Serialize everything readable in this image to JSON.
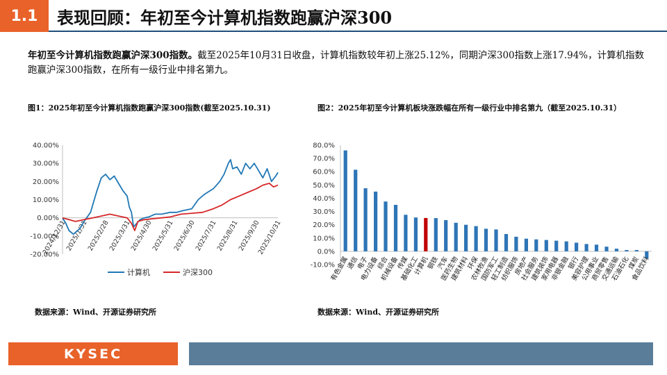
{
  "header": {
    "section_no": "1.1",
    "title": "表现回顾：年初至今计算机指数跑赢沪深300"
  },
  "summary": {
    "lead": "年初至今计算机指数跑赢沪深300指数。",
    "body": "截至2025年10月31日收盘，计算机指数较年初上涨25.12%，同期沪深300指数上涨17.94%，计算机指数跑赢沪深300指数，在所有一级行业中排名第九。"
  },
  "figure1": {
    "title": "图1：2025年初至今计算机指数跑赢沪深300指数(截至2025.10.31)",
    "source": "数据来源：Wind、开源证券研究所"
  },
  "figure2": {
    "title": "图2：2025年初至今计算机板块涨跌幅在所有一级行业中排名第九（截至2025.10.31）",
    "source": "数据来源：Wind、开源证券研究所"
  },
  "footer": {
    "logo": "KYSEC"
  },
  "colors": {
    "accent": "#e8622a",
    "navy": "#1f4e79",
    "computer": "#1f77b4",
    "hs300": "#d62728",
    "bar": "#2e75b6",
    "bar_highlight": "#c00000"
  },
  "chart_data": [
    {
      "type": "line",
      "ylim": [
        -20,
        40
      ],
      "yticks": [
        "-20.00%",
        "-10.00%",
        "0.00%",
        "10.00%",
        "20.00%",
        "30.00%",
        "40.00%"
      ],
      "ytick_values": [
        -20,
        -10,
        0,
        10,
        20,
        30,
        40
      ],
      "xticks": [
        "2024/12/31",
        "2025/1/31",
        "2025/2/28",
        "2025/3/31",
        "2025/4/30",
        "2025/5/31",
        "2025/6/30",
        "2025/7/31",
        "2025/8/31",
        "2025/9/30",
        "2025/10/31"
      ],
      "series": [
        {
          "name": "计算机",
          "x": [
            0,
            0.15,
            0.3,
            0.5,
            0.8,
            1.0,
            1.3,
            1.6,
            1.8,
            2.0,
            2.2,
            2.4,
            2.6,
            2.8,
            3.0,
            3.1,
            3.2,
            3.3,
            3.45,
            3.6,
            3.8,
            4.0,
            4.3,
            4.6,
            5.0,
            5.3,
            5.6,
            6.0,
            6.3,
            6.6,
            7.0,
            7.3,
            7.5,
            7.7,
            7.8,
            7.9,
            8.1,
            8.3,
            8.5,
            8.7,
            8.9,
            9.1,
            9.3,
            9.5,
            9.7,
            9.9,
            10.0
          ],
          "values": [
            0,
            -3,
            -7,
            -9,
            -6,
            -2,
            3,
            15,
            22,
            24,
            21,
            23,
            19,
            15,
            12,
            6,
            3,
            -5,
            -3,
            -1,
            0,
            0.5,
            2,
            2,
            3,
            3,
            4,
            5,
            10,
            13,
            16,
            20,
            24,
            30,
            32,
            27,
            28,
            24,
            30,
            27,
            30,
            26,
            22,
            27,
            20,
            23,
            25
          ]
        },
        {
          "name": "沪深300",
          "x": [
            0,
            0.3,
            0.6,
            1.0,
            1.4,
            1.8,
            2.2,
            2.6,
            3.0,
            3.2,
            3.35,
            3.5,
            3.8,
            4.2,
            4.6,
            5.0,
            5.5,
            6.0,
            6.5,
            7.0,
            7.4,
            7.8,
            8.2,
            8.6,
            9.0,
            9.3,
            9.6,
            9.8,
            10.0
          ],
          "values": [
            0,
            -1,
            -2,
            -1,
            0,
            1,
            2,
            1,
            0,
            -3,
            -7,
            -2,
            -1,
            -0.5,
            0,
            0.5,
            2,
            2.5,
            3,
            5,
            7,
            10,
            12,
            14,
            16,
            18,
            19,
            17,
            18
          ]
        }
      ]
    },
    {
      "type": "bar",
      "ylim": [
        -10,
        80
      ],
      "yticks": [
        "-10.0%",
        "0.0%",
        "10.0%",
        "20.0%",
        "30.0%",
        "40.0%",
        "50.0%",
        "60.0%",
        "70.0%",
        "80.0%"
      ],
      "ytick_values": [
        -10,
        0,
        10,
        20,
        30,
        40,
        50,
        60,
        70,
        80
      ],
      "categories": [
        "有色金属",
        "通信",
        "电子",
        "电力设备",
        "综合",
        "机械设备",
        "传媒",
        "基础化工",
        "计算机",
        "钢铁",
        "汽车",
        "医药生物",
        "建筑材料",
        "环保",
        "农林牧渔",
        "国防军工",
        "轻工制造",
        "纺织服饰",
        "房地产",
        "社会服务",
        "建筑装饰",
        "家用电器",
        "非银金融",
        "银行",
        "美容护理",
        "公用事业",
        "商贸零售",
        "交通运输",
        "石油石化",
        "煤炭",
        "食品饮料"
      ],
      "values": [
        76,
        61.5,
        47.5,
        45,
        37.5,
        35,
        27.5,
        25.5,
        25.12,
        25,
        23.5,
        21.5,
        20,
        19,
        17,
        16.5,
        13,
        11,
        9.5,
        9,
        8.5,
        8,
        7.5,
        6.5,
        5.5,
        5,
        3.5,
        2,
        1,
        1,
        -5.5
      ],
      "highlight": "计算机"
    }
  ]
}
